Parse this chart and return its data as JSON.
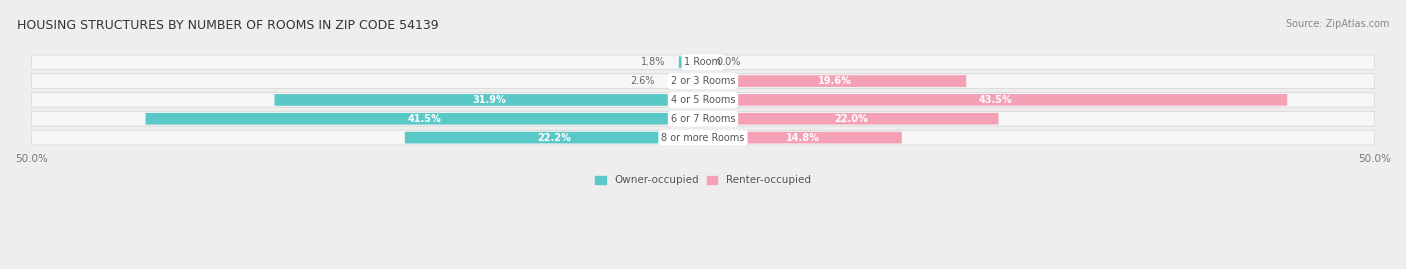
{
  "title": "HOUSING STRUCTURES BY NUMBER OF ROOMS IN ZIP CODE 54139",
  "source": "Source: ZipAtlas.com",
  "categories": [
    "1 Room",
    "2 or 3 Rooms",
    "4 or 5 Rooms",
    "6 or 7 Rooms",
    "8 or more Rooms"
  ],
  "owner_values": [
    1.8,
    2.6,
    31.9,
    41.5,
    22.2
  ],
  "renter_values": [
    0.0,
    19.6,
    43.5,
    22.0,
    14.8
  ],
  "owner_color": "#5bc8c8",
  "renter_color": "#f4a0b5",
  "axis_limit": 50.0,
  "bg_color": "#eeeeee",
  "bar_bg_color": "#f7f7f7",
  "bar_bg_edge_color": "#dddddd",
  "label_color_outside": "#666666",
  "bar_height": 0.62,
  "center_label_color": "#555555",
  "threshold_inside": 8.0,
  "legend_label_owner": "Owner-occupied",
  "legend_label_renter": "Renter-occupied"
}
